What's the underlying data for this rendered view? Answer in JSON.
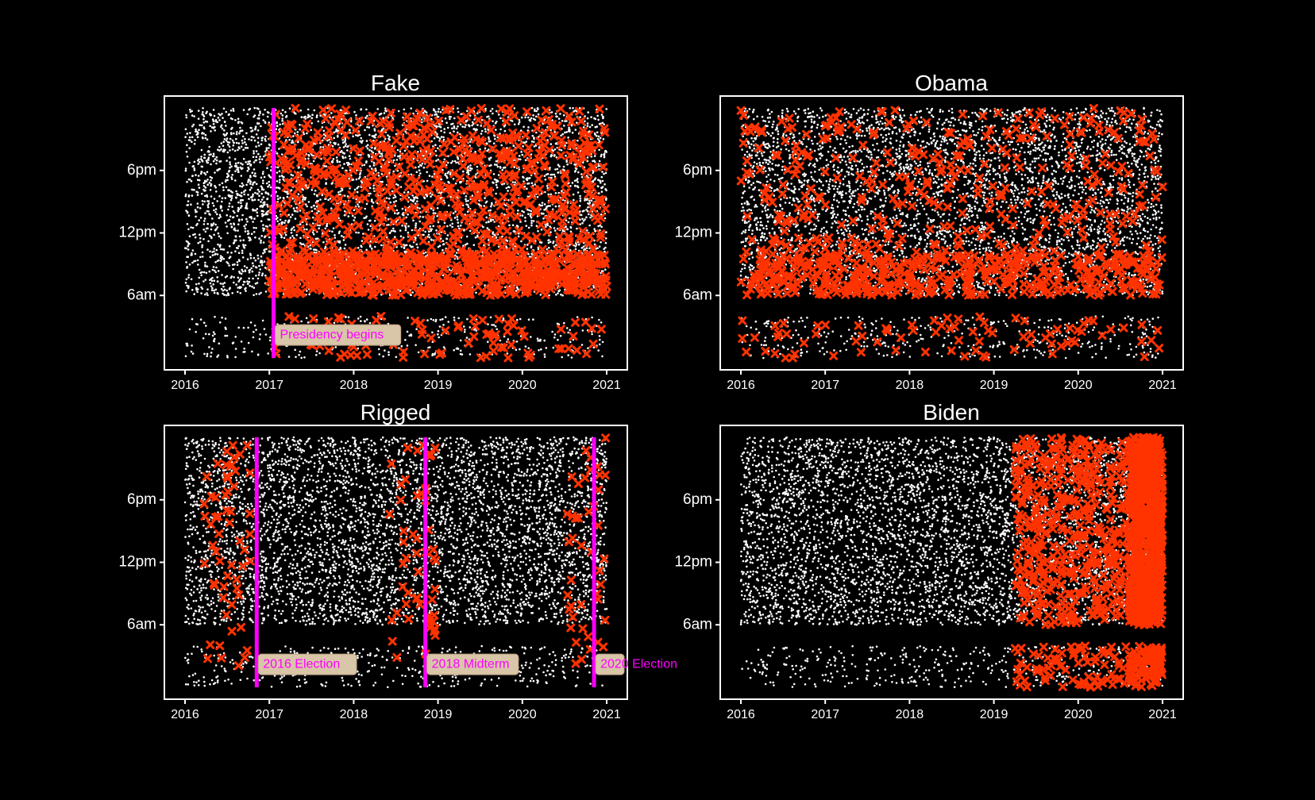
{
  "colors": {
    "background": "#000000",
    "axes": "#ffffff",
    "background_tweets": "#ffffff",
    "keyword_tweets": "#ff3300",
    "keyword_marker_edge": "#ffcc00",
    "event_lines": "#ff00ff",
    "annotation_box": "#d9c5a8",
    "annotation_text": "#ff00ff"
  },
  "chart_data": [
    {
      "type": "scatter",
      "title": "Fake",
      "x_ticks": [
        "2016",
        "2017",
        "2018",
        "2019",
        "2020",
        "2021"
      ],
      "y_ticks": [
        "6am",
        "12pm",
        "6pm"
      ],
      "xlim": [
        2016,
        2021
      ],
      "ylim_hours": [
        0,
        24
      ],
      "grid": false,
      "series": [
        {
          "marker": "white-dot",
          "description_visible": false
        },
        {
          "marker": "orange-x"
        }
      ],
      "keyword_activity": {
        "start": 2017.0,
        "density": "very high",
        "peak_band_hours": [
          6,
          10
        ]
      },
      "events": [
        {
          "x": 2017.05,
          "label": "Presidency begins"
        }
      ]
    },
    {
      "type": "scatter",
      "title": "Obama",
      "x_ticks": [
        "2016",
        "2017",
        "2018",
        "2019",
        "2020",
        "2021"
      ],
      "y_ticks": [
        "6am",
        "12pm",
        "6pm"
      ],
      "xlim": [
        2016,
        2021
      ],
      "ylim_hours": [
        0,
        24
      ],
      "grid": false,
      "keyword_activity": {
        "start": 2016.0,
        "density": "high",
        "peak_band_hours": [
          6,
          10
        ]
      },
      "events": []
    },
    {
      "type": "scatter",
      "title": "Rigged",
      "x_ticks": [
        "2016",
        "2017",
        "2018",
        "2019",
        "2020",
        "2021"
      ],
      "y_ticks": [
        "6am",
        "12pm",
        "6pm"
      ],
      "xlim": [
        2016,
        2021
      ],
      "ylim_hours": [
        0,
        24
      ],
      "grid": false,
      "keyword_activity": {
        "start": 2016.2,
        "density": "low",
        "clusters": [
          2016.5,
          2018.7,
          2020.8
        ]
      },
      "events": [
        {
          "x": 2016.85,
          "label": "2016 Election"
        },
        {
          "x": 2018.85,
          "label": "2018 Midterm"
        },
        {
          "x": 2020.85,
          "label": "2020 Election"
        }
      ]
    },
    {
      "type": "scatter",
      "title": "Biden",
      "x_ticks": [
        "2016",
        "2017",
        "2018",
        "2019",
        "2020",
        "2021"
      ],
      "y_ticks": [
        "6am",
        "12pm",
        "6pm"
      ],
      "xlim": [
        2016,
        2021
      ],
      "ylim_hours": [
        0,
        24
      ],
      "grid": false,
      "keyword_activity": {
        "start": 2019.25,
        "density": "very high from 2020.6",
        "peak_band_hours": [
          0,
          24
        ]
      },
      "events": []
    }
  ]
}
